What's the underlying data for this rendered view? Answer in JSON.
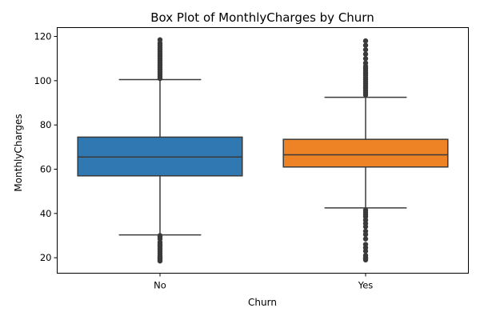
{
  "chart_data": {
    "type": "box",
    "title": "Box Plot of MonthlyCharges by Churn",
    "xlabel": "Churn",
    "ylabel": "MonthlyCharges",
    "categories": [
      "No",
      "Yes"
    ],
    "ylim": [
      13,
      124
    ],
    "yticks": [
      20,
      40,
      60,
      80,
      100,
      120
    ],
    "grid": false,
    "colors": [
      "#2f78b2",
      "#ee8326"
    ],
    "boxes": [
      {
        "name": "No",
        "whisker_low": 30.3,
        "q1": 57.0,
        "median": 65.5,
        "q3": 74.5,
        "whisker_high": 100.5,
        "fliers_low": [
          18.5,
          19.0,
          19.5,
          20.0,
          20.5,
          21.0,
          22.0,
          23.0,
          24.0,
          25.0,
          25.5,
          26.0,
          27.0,
          28.5,
          29.5,
          30.0
        ],
        "fliers_high": [
          101.0,
          102.0,
          103.0,
          104.0,
          105.0,
          106.0,
          107.0,
          108.0,
          109.0,
          110.0,
          111.0,
          112.0,
          113.0,
          114.0,
          115.0,
          116.0,
          117.0,
          118.5
        ]
      },
      {
        "name": "Yes",
        "whisker_low": 42.5,
        "q1": 61.0,
        "median": 66.5,
        "q3": 73.5,
        "whisker_high": 92.5,
        "fliers_low": [
          19.0,
          19.5,
          20.0,
          21.0,
          23.0,
          24.5,
          26.0,
          28.5,
          30.5,
          32.0,
          34.0,
          35.5,
          37.0,
          38.5,
          39.5,
          40.5,
          41.5
        ],
        "fliers_high": [
          93.5,
          94.5,
          95.5,
          96.5,
          97.5,
          98.5,
          99.5,
          100.5,
          101.5,
          102.5,
          103.5,
          104.5,
          105.5,
          106.5,
          108.0,
          110.0,
          112.0,
          114.0,
          116.0,
          118.0
        ]
      }
    ]
  }
}
